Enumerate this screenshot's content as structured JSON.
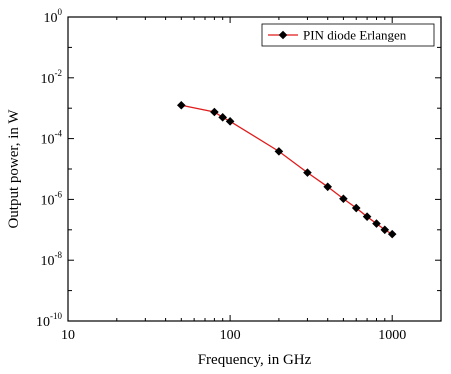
{
  "chart_data": {
    "type": "line",
    "title": "",
    "xlabel": "Frequency, in GHz",
    "ylabel": "Output power, in W",
    "xscale": "log",
    "yscale": "log",
    "xlim": [
      10,
      2000
    ],
    "ylim": [
      1e-10,
      1
    ],
    "xticks": [
      {
        "value": 10,
        "label": "10"
      },
      {
        "value": 100,
        "label": "100"
      },
      {
        "value": 1000,
        "label": "1000"
      }
    ],
    "yticks": [
      {
        "value": 1,
        "base": "10",
        "exp": "0"
      },
      {
        "value": 0.01,
        "base": "10",
        "exp": "-2"
      },
      {
        "value": 0.0001,
        "base": "10",
        "exp": "-4"
      },
      {
        "value": 1e-06,
        "base": "10",
        "exp": "-6"
      },
      {
        "value": 1e-08,
        "base": "10",
        "exp": "-8"
      },
      {
        "value": 1e-10,
        "base": "10",
        "exp": "-10"
      }
    ],
    "grid": false,
    "legend_position": "top-right",
    "series": [
      {
        "name": "PIN diode Erlangen",
        "color": "#e01b1b",
        "marker": "diamond",
        "marker_color": "#000000",
        "x": [
          50,
          80,
          90,
          100,
          200,
          300,
          400,
          500,
          600,
          700,
          800,
          900,
          1000
        ],
        "y": [
          0.00125,
          0.00075,
          0.0005,
          0.00037,
          3.8e-05,
          7.6e-06,
          2.6e-06,
          1.05e-06,
          5.2e-07,
          2.7e-07,
          1.6e-07,
          1e-07,
          7.2e-08
        ]
      }
    ]
  }
}
